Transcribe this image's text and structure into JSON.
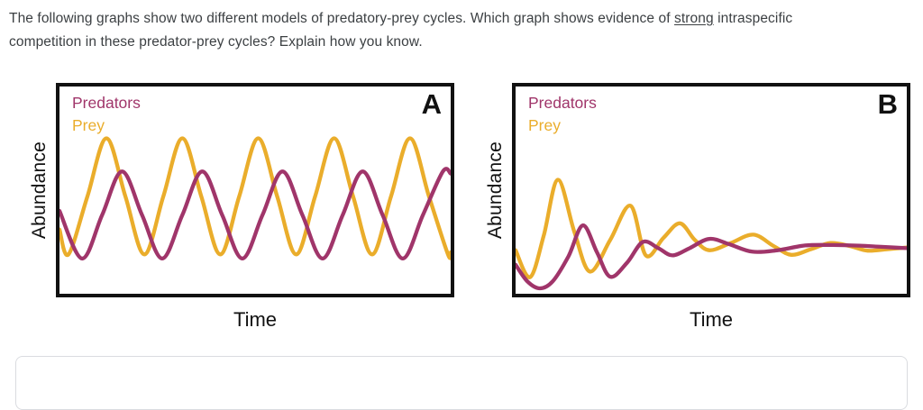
{
  "question": {
    "line1_before": "The following graphs show two different models of predatory-prey cycles. Which graph shows evidence of ",
    "line1_emphasis": "strong",
    "line1_after": " intraspecific",
    "line2": "competition in these predator-prey cycles? Explain how you know."
  },
  "colors": {
    "predator": "#A0356A",
    "prey": "#EAAD2B",
    "axis_and_text": "#111111",
    "question_text": "#3c4043",
    "answer_border": "#dadce0"
  },
  "answer_box": {
    "value": "",
    "placeholder": ""
  },
  "chart_data": [
    {
      "type": "line",
      "panel": "A",
      "xlabel": "Time",
      "ylabel": "Abundance",
      "x_range": [
        0,
        100
      ],
      "y_range": [
        0,
        100
      ],
      "grid": false,
      "axis_ticks": "none",
      "legend_position": "top-left",
      "description": "Sustained constant-amplitude predator-prey oscillations; prey (larger amplitude) leads, predators lag by about a quarter cycle",
      "series": [
        {
          "name": "Prey",
          "color": "#EAAD2B",
          "points": [
            [
              0,
              31
            ],
            [
              2.3,
              19
            ],
            [
              7.15,
              47
            ],
            [
              12,
              75
            ],
            [
              16.85,
              47
            ],
            [
              21.7,
              19
            ],
            [
              26.55,
              47
            ],
            [
              31.4,
              75
            ],
            [
              36.25,
              47
            ],
            [
              41.1,
              19
            ],
            [
              45.95,
              47
            ],
            [
              50.8,
              75
            ],
            [
              55.65,
              47
            ],
            [
              60.5,
              19
            ],
            [
              65.35,
              47
            ],
            [
              70.2,
              75
            ],
            [
              75.05,
              47
            ],
            [
              79.9,
              19
            ],
            [
              84.75,
              47
            ],
            [
              89.6,
              75
            ],
            [
              94.45,
              47
            ],
            [
              99.3,
              19
            ],
            [
              100,
              20
            ]
          ]
        },
        {
          "name": "Predators",
          "color": "#A0356A",
          "points": [
            [
              0,
              40
            ],
            [
              5.75,
              17
            ],
            [
              10.9,
              38
            ],
            [
              16,
              59
            ],
            [
              21.1,
              38
            ],
            [
              26.25,
              17
            ],
            [
              31.4,
              38
            ],
            [
              36.5,
              59
            ],
            [
              41.6,
              38
            ],
            [
              46.75,
              17
            ],
            [
              51.9,
              38
            ],
            [
              57,
              59
            ],
            [
              62.1,
              38
            ],
            [
              67.25,
              17
            ],
            [
              72.4,
              38
            ],
            [
              77.5,
              59
            ],
            [
              82.6,
              38
            ],
            [
              87.75,
              17
            ],
            [
              92.9,
              38
            ],
            [
              98,
              59
            ],
            [
              100,
              58
            ]
          ]
        }
      ]
    },
    {
      "type": "line",
      "panel": "B",
      "xlabel": "Time",
      "ylabel": "Abundance",
      "x_range": [
        0,
        100
      ],
      "y_range": [
        0,
        100
      ],
      "grid": false,
      "axis_ticks": "none",
      "legend_position": "top-left",
      "description": "Damped predator-prey oscillations converging to a stable equilibrium abundance",
      "series": [
        {
          "name": "Prey",
          "color": "#EAAD2B",
          "points": [
            [
              0,
              21
            ],
            [
              3.7,
              8
            ],
            [
              7.2,
              28
            ],
            [
              10.8,
              55
            ],
            [
              15,
              30
            ],
            [
              19,
              10.7
            ],
            [
              24.2,
              26
            ],
            [
              29.4,
              42.5
            ],
            [
              33.3,
              18.5
            ],
            [
              37.8,
              27
            ],
            [
              42,
              34
            ],
            [
              45.8,
              26
            ],
            [
              49.5,
              21
            ],
            [
              55,
              24.5
            ],
            [
              60.8,
              28.5
            ],
            [
              66,
              23
            ],
            [
              70.5,
              18.8
            ],
            [
              75.5,
              21.5
            ],
            [
              80.5,
              24.5
            ],
            [
              85.5,
              23
            ],
            [
              90,
              20.8
            ],
            [
              95,
              21.5
            ],
            [
              100,
              22.3
            ]
          ]
        },
        {
          "name": "Predators",
          "color": "#A0356A",
          "points": [
            [
              0,
              14
            ],
            [
              3,
              6
            ],
            [
              6.2,
              2.6
            ],
            [
              9.5,
              6
            ],
            [
              13.5,
              18
            ],
            [
              17.2,
              33
            ],
            [
              20.8,
              20
            ],
            [
              24.2,
              8.2
            ],
            [
              28.5,
              15
            ],
            [
              32.5,
              25
            ],
            [
              36.5,
              22
            ],
            [
              40.1,
              18.5
            ],
            [
              44.5,
              22
            ],
            [
              49.5,
              26.5
            ],
            [
              54.5,
              24
            ],
            [
              60.5,
              20.3
            ],
            [
              67,
              21
            ],
            [
              74,
              23.3
            ],
            [
              81,
              23.5
            ],
            [
              88,
              23.2
            ],
            [
              94,
              22.6
            ],
            [
              100,
              22
            ]
          ]
        }
      ]
    }
  ]
}
